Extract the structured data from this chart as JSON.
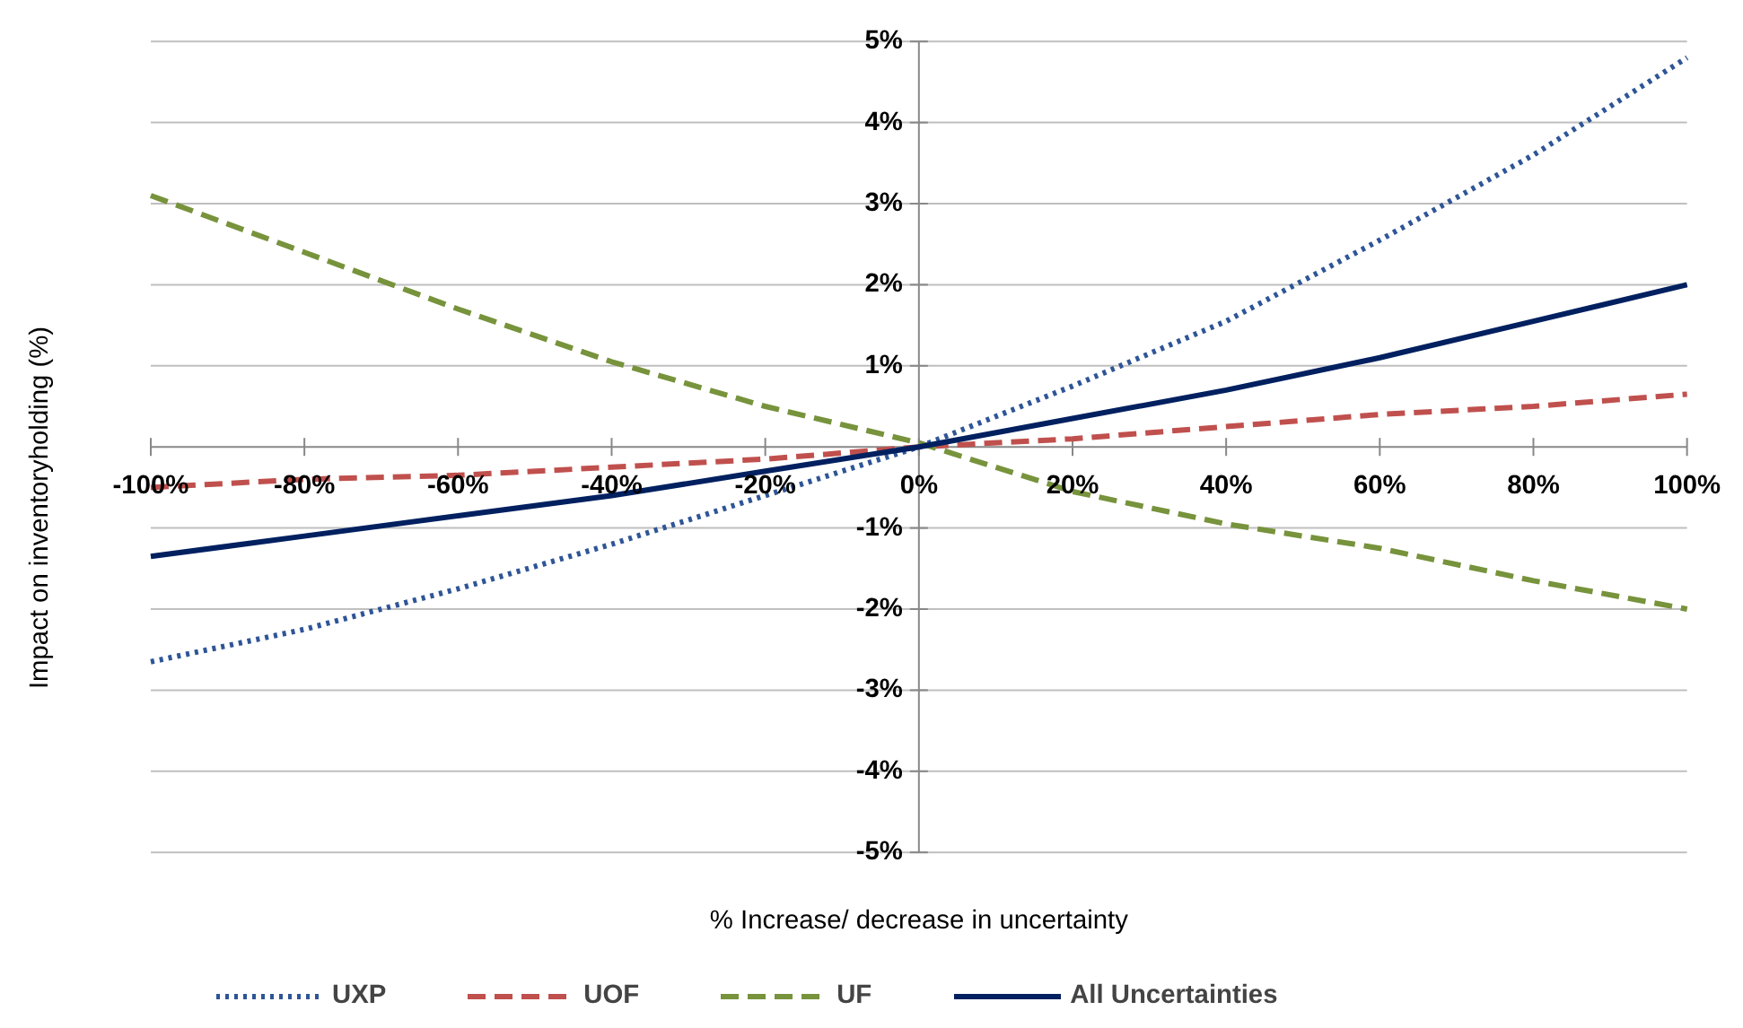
{
  "chart_data": {
    "type": "line",
    "xlabel": "% Increase/ decrease in uncertainty",
    "ylabel": "Impact on inventoryholding (%)",
    "x": [
      -100,
      -80,
      -60,
      -40,
      -20,
      0,
      20,
      40,
      60,
      80,
      100
    ],
    "series": [
      {
        "name": "UXP",
        "color": "#2e5597",
        "line_style": "dotted",
        "values": [
          -2.65,
          -2.25,
          -1.75,
          -1.2,
          -0.6,
          0,
          0.75,
          1.55,
          2.55,
          3.6,
          4.8
        ]
      },
      {
        "name": "UOF",
        "color": "#c0504d",
        "line_style": "dashed",
        "values": [
          -0.5,
          -0.4,
          -0.35,
          -0.25,
          -0.15,
          0,
          0.1,
          0.25,
          0.4,
          0.5,
          0.65
        ]
      },
      {
        "name": "UF",
        "color": "#77933c",
        "line_style": "dashed",
        "values": [
          3.1,
          2.4,
          1.7,
          1.05,
          0.5,
          0.05,
          -0.55,
          -0.95,
          -1.25,
          -1.65,
          -2.0
        ]
      },
      {
        "name": "All Uncertainties",
        "color": "#002060",
        "line_style": "solid",
        "values": [
          -1.35,
          -1.1,
          -0.85,
          -0.6,
          -0.3,
          0,
          0.35,
          0.7,
          1.1,
          1.55,
          2.0
        ]
      }
    ],
    "xlim": [
      -100,
      100
    ],
    "ylim": [
      -5,
      5
    ],
    "xticks": [
      {
        "value": -100,
        "label": "-100%"
      },
      {
        "value": -80,
        "label": "-80%"
      },
      {
        "value": -60,
        "label": "-60%"
      },
      {
        "value": -40,
        "label": "-40%"
      },
      {
        "value": -20,
        "label": "-20%"
      },
      {
        "value": 0,
        "label": "0%"
      },
      {
        "value": 20,
        "label": "20%"
      },
      {
        "value": 40,
        "label": "40%"
      },
      {
        "value": 60,
        "label": "60%"
      },
      {
        "value": 80,
        "label": "80%"
      },
      {
        "value": 100,
        "label": "100%"
      }
    ],
    "yticks": [
      {
        "value": -5,
        "label": "-5%"
      },
      {
        "value": -4,
        "label": "-4%"
      },
      {
        "value": -3,
        "label": "-3%"
      },
      {
        "value": -2,
        "label": "-2%"
      },
      {
        "value": -1,
        "label": "-1%"
      },
      {
        "value": 0,
        "label": null
      },
      {
        "value": 1,
        "label": "1%"
      },
      {
        "value": 2,
        "label": "2%"
      },
      {
        "value": 3,
        "label": "3%"
      },
      {
        "value": 4,
        "label": "4%"
      },
      {
        "value": 5,
        "label": "5%"
      }
    ],
    "grid": "y",
    "legend": "bottom",
    "marker": "none"
  }
}
